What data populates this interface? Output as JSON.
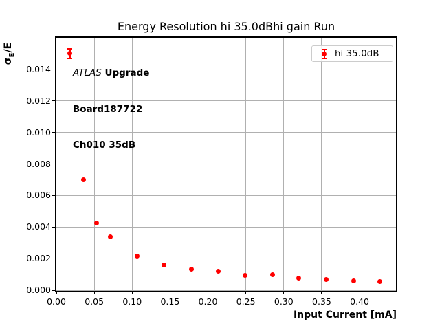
{
  "figure": {
    "background": "#ffffff"
  },
  "chart_data": {
    "type": "scatter",
    "title": "Energy Resolution hi 35.0dBhi gain Run",
    "xlabel": "Input Current [mA]",
    "ylabel": "σE/E",
    "ylabel_parts": {
      "sigma": "σ",
      "sub": "E",
      "rest": "/E"
    },
    "xlim": [
      0,
      0.448
    ],
    "ylim": [
      0,
      0.016
    ],
    "grid": true,
    "grid_color": "#b0b0b0",
    "frame_color": "#000000",
    "legend": {
      "position": "upper right",
      "entries": [
        {
          "label": "hi 35.0dB",
          "color": "#ff0000",
          "marker": "errorbar-point"
        }
      ]
    },
    "annotation": {
      "line1_italic": "ATLAS",
      "line1_bold": " Upgrade",
      "line2": "Board187722",
      "line3": "Ch010 35dB"
    },
    "xticks": {
      "values": [
        0,
        0.05,
        0.1,
        0.15,
        0.2,
        0.25,
        0.3,
        0.35,
        0.4
      ],
      "labels": [
        "0.00",
        "0.05",
        "0.10",
        "0.15",
        "0.20",
        "0.25",
        "0.30",
        "0.35",
        "0.40"
      ]
    },
    "yticks": {
      "values": [
        0,
        0.002,
        0.004,
        0.006,
        0.008,
        0.01,
        0.012,
        0.014
      ],
      "labels": [
        "0.000",
        "0.002",
        "0.004",
        "0.006",
        "0.008",
        "0.010",
        "0.012",
        "0.014"
      ]
    },
    "series": [
      {
        "name": "hi 35.0dB",
        "color": "#ff0000",
        "marker_diameter_px": 7,
        "x": [
          0.018,
          0.036,
          0.053,
          0.071,
          0.107,
          0.142,
          0.178,
          0.214,
          0.249,
          0.285,
          0.32,
          0.356,
          0.392,
          0.427
        ],
        "y": [
          0.015,
          0.007,
          0.00425,
          0.0034,
          0.00216,
          0.00161,
          0.00131,
          0.0012,
          0.00095,
          0.00097,
          0.00078,
          0.00068,
          0.00058,
          0.00053
        ],
        "yerr": [
          0.0003,
          0,
          0,
          0,
          0,
          0,
          0,
          0,
          0,
          0,
          0,
          0,
          0,
          0
        ]
      }
    ]
  }
}
